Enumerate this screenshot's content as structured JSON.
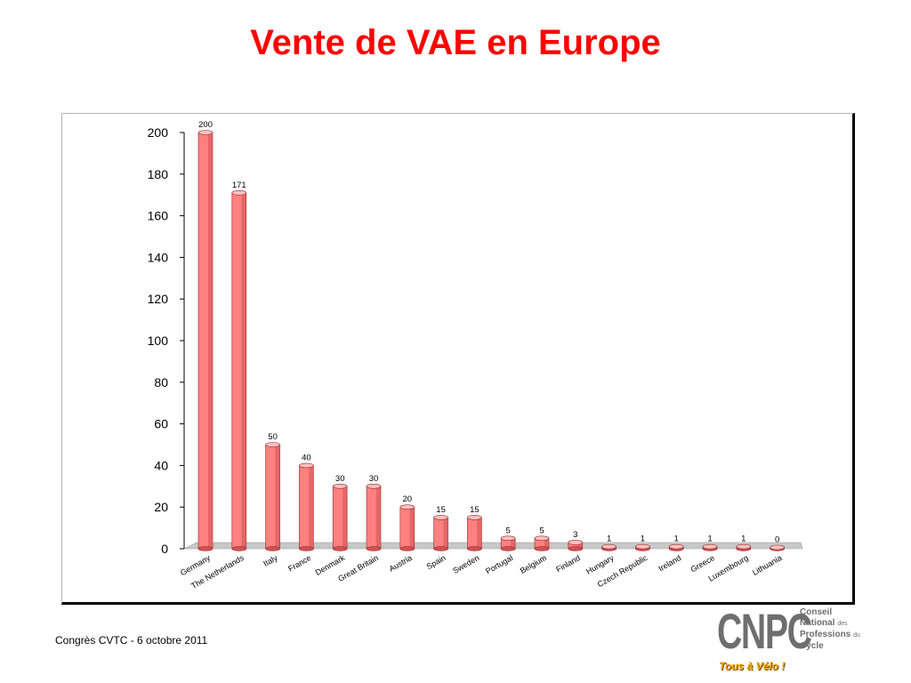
{
  "slide": {
    "title": "Vente de VAE en Europe",
    "footer": "Congrès CVTC - 6 octobre 2011"
  },
  "logo": {
    "letters": "CNPC",
    "line1": "Conseil",
    "line2a": "National",
    "line2b": "des",
    "line3a": "Professions",
    "line3b": "du",
    "line4": "Cycle",
    "tagline": "Tous à Vélo !"
  },
  "colors": {
    "title": "#ff0000",
    "bar_front": "#ff8080",
    "bar_side": "#d05050",
    "bar_top": "#ffc0c0",
    "floor": "#c8c8c8",
    "logo_grey": "#6e6e6e",
    "logo_tagline": "#f2a900"
  },
  "chart_data": {
    "type": "bar",
    "title": "",
    "xlabel": "",
    "ylabel": "",
    "ylim": [
      0,
      200
    ],
    "yticks": [
      0,
      20,
      40,
      60,
      80,
      100,
      120,
      140,
      160,
      180,
      200
    ],
    "grid": false,
    "legend": "none",
    "style": "3d-cylinder",
    "categories": [
      "Germany",
      "The Netherlands",
      "Italy",
      "France",
      "Denmark",
      "Great Britain",
      "Austria",
      "Spain",
      "Sweden",
      "Portugal",
      "Belgium",
      "Finland",
      "Hungary",
      "Czech Republic",
      "Ireland",
      "Greece",
      "Luxembourg",
      "Lithuania"
    ],
    "values": [
      200,
      171,
      50,
      40,
      30,
      30,
      20,
      15,
      15,
      5,
      5,
      3,
      1,
      1,
      1,
      1,
      1,
      0
    ]
  }
}
